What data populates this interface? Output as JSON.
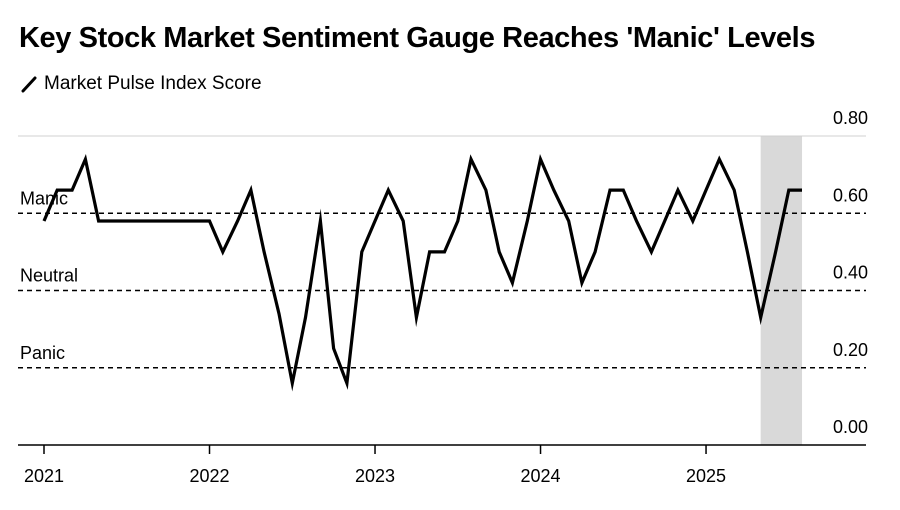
{
  "title": "Key Stock Market Sentiment Gauge Reaches 'Manic' Levels",
  "legend": {
    "label": "Market Pulse Index Score",
    "icon": "line-icon"
  },
  "chart_data": {
    "type": "line",
    "title": "Key Stock Market Sentiment Gauge Reaches 'Manic' Levels",
    "ylim": [
      0,
      0.8
    ],
    "yticks": [
      "0.00",
      "0.20",
      "0.40",
      "0.60",
      "0.80"
    ],
    "ytick_values": [
      0,
      0.2,
      0.4,
      0.6,
      0.8
    ],
    "xlim": [
      2021,
      2025.9
    ],
    "xticks": [
      "2021",
      "2022",
      "2023",
      "2024",
      "2025"
    ],
    "xtick_values": [
      2021,
      2022,
      2023,
      2024,
      2025
    ],
    "thresholds": [
      {
        "label": "Manic",
        "value": 0.6
      },
      {
        "label": "Neutral",
        "value": 0.4
      },
      {
        "label": "Panic",
        "value": 0.2
      }
    ],
    "highlight": {
      "from": 2025.33,
      "to": 2025.58,
      "color": "#d9d9d9"
    },
    "series": [
      {
        "name": "Market Pulse Index Score",
        "color": "#000000",
        "x": [
          2021.0,
          2021.08,
          2021.17,
          2021.25,
          2021.33,
          2021.42,
          2021.5,
          2021.58,
          2021.67,
          2021.75,
          2021.83,
          2021.92,
          2022.0,
          2022.08,
          2022.17,
          2022.25,
          2022.33,
          2022.42,
          2022.5,
          2022.58,
          2022.67,
          2022.75,
          2022.83,
          2022.92,
          2023.0,
          2023.08,
          2023.17,
          2023.25,
          2023.33,
          2023.42,
          2023.5,
          2023.58,
          2023.67,
          2023.75,
          2023.83,
          2023.92,
          2024.0,
          2024.08,
          2024.17,
          2024.25,
          2024.33,
          2024.42,
          2024.5,
          2024.58,
          2024.67,
          2024.75,
          2024.83,
          2024.92,
          2025.0,
          2025.08,
          2025.17,
          2025.25,
          2025.33,
          2025.42,
          2025.5,
          2025.58
        ],
        "y": [
          0.58,
          0.66,
          0.66,
          0.74,
          0.58,
          0.58,
          0.58,
          0.58,
          0.58,
          0.58,
          0.58,
          0.58,
          0.58,
          0.5,
          0.58,
          0.66,
          0.5,
          0.34,
          0.16,
          0.33,
          0.58,
          0.25,
          0.16,
          0.5,
          0.58,
          0.66,
          0.58,
          0.33,
          0.5,
          0.5,
          0.58,
          0.74,
          0.66,
          0.5,
          0.42,
          0.58,
          0.74,
          0.66,
          0.58,
          0.42,
          0.5,
          0.66,
          0.66,
          0.58,
          0.5,
          0.58,
          0.66,
          0.58,
          0.66,
          0.74,
          0.66,
          0.5,
          0.33,
          0.5,
          0.66,
          0.66
        ]
      }
    ]
  }
}
